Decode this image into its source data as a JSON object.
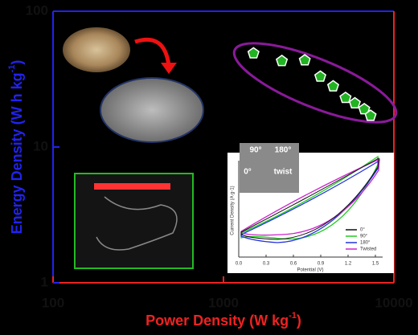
{
  "chart_data": {
    "type": "scatter",
    "xlabel": {
      "main": "Power Density (W kg",
      "sup": "-1",
      "end": ")"
    },
    "ylabel": {
      "main": "Energy Density (W h kg",
      "sup": "-1",
      "end": ")"
    },
    "log_x": true,
    "log_y": true,
    "xlim": [
      100,
      10000
    ],
    "xticks": [
      100,
      1000,
      10000
    ],
    "ylim": [
      1,
      100
    ],
    "yticks": [
      1,
      10,
      100
    ],
    "color": "#22b322",
    "x": [
      1500,
      2200,
      3000,
      3700,
      4400,
      5200,
      5900,
      6700,
      7300
    ],
    "values": [
      49,
      43,
      43.5,
      33,
      28,
      23,
      21,
      19,
      17
    ],
    "inset": {
      "photo_labels": [
        "90°",
        "180°",
        "0°",
        "twist"
      ],
      "xlabel": "Potential (V)",
      "ylabel": "Current Density (A g-1)",
      "xticks": [
        {
          "value": 0,
          "label": "0.0"
        },
        {
          "value": 0.3,
          "label": "0.3"
        },
        {
          "value": 0.6,
          "label": "0.6"
        },
        {
          "value": 0.9,
          "label": "0.9"
        },
        {
          "value": 1.2,
          "label": "1.2"
        },
        {
          "value": 1.5,
          "label": "1.5"
        }
      ],
      "xlim": [
        0,
        1.5
      ],
      "legend": [
        {
          "name": "0°",
          "color": "#111111"
        },
        {
          "name": "90°",
          "color": "#22cc22"
        },
        {
          "name": "180°",
          "color": "#2233dd"
        },
        {
          "name": "Twisted",
          "color": "#cc22cc"
        }
      ]
    }
  }
}
